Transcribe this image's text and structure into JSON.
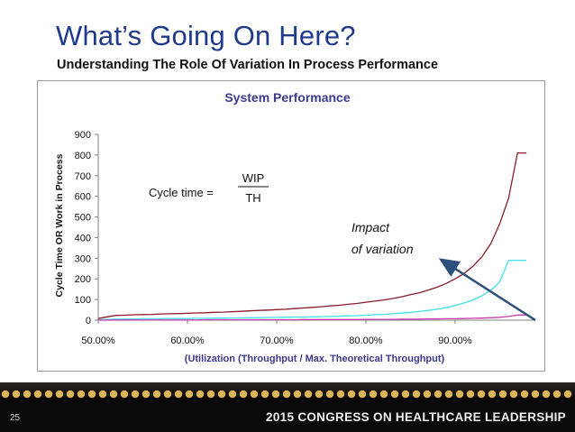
{
  "slide": {
    "title": "What’s Going On Here?",
    "subtitle": "Understanding The Role Of Variation In Process Performance",
    "page_number": "25",
    "footer_text": "2015 CONGRESS ON HEALTHCARE LEADERSHIP"
  },
  "colors": {
    "title": "#1f3a8a",
    "chart_title": "#3b3a8f",
    "series_red": "#8b1a2a",
    "series_cyan": "#3fe0e6",
    "series_magenta": "#c83aa8",
    "arrow": "#2d4f7a"
  },
  "annotations": {
    "formula_label": "Cycle time =",
    "formula_numerator": "WIP",
    "formula_denominator": "TH",
    "impact_line1": "Impact",
    "impact_line2": "of variation"
  },
  "chart_data": {
    "type": "line",
    "title": "System Performance",
    "xlabel": "(Utilization (Throughput / Max. Theoretical Throughput)",
    "ylabel": "Cycle Time OR Work in Process",
    "xlim": [
      0.5,
      0.99
    ],
    "ylim": [
      0,
      900
    ],
    "xticks": [
      0.5,
      0.6,
      0.7,
      0.8,
      0.9
    ],
    "xtick_labels": [
      "50.00%",
      "60.00%",
      "70.00%",
      "80.00%",
      "90.00%"
    ],
    "yticks": [
      0,
      100,
      200,
      300,
      400,
      500,
      600,
      700,
      800,
      900
    ],
    "ytick_labels": [
      "0",
      "100",
      "200",
      "300",
      "400",
      "500",
      "600",
      "700",
      "800",
      "900"
    ],
    "grid": false,
    "legend": "none",
    "x": [
      0.5,
      0.51,
      0.52,
      0.53,
      0.54,
      0.55,
      0.56,
      0.57,
      0.58,
      0.59,
      0.6,
      0.61,
      0.62,
      0.63,
      0.64,
      0.65,
      0.66,
      0.67,
      0.68,
      0.69,
      0.7,
      0.71,
      0.72,
      0.73,
      0.74,
      0.75,
      0.76,
      0.77,
      0.78,
      0.79,
      0.8,
      0.81,
      0.82,
      0.83,
      0.84,
      0.85,
      0.86,
      0.87,
      0.88,
      0.89,
      0.9,
      0.91,
      0.92,
      0.93,
      0.94,
      0.95,
      0.96,
      0.97,
      0.98
    ],
    "series": [
      {
        "color_key": "series_red",
        "values": [
          8,
          16,
          23,
          24,
          26,
          27,
          28,
          30,
          31,
          32,
          33,
          35,
          36,
          38,
          39,
          41,
          43,
          45,
          47,
          49,
          51,
          53,
          56,
          59,
          62,
          65,
          69,
          72,
          77,
          81,
          87,
          92,
          98,
          105,
          113,
          123,
          133,
          146,
          160,
          178,
          200,
          226,
          261,
          306,
          370,
          466,
          590,
          810,
          810
        ]
      },
      {
        "color_key": "series_cyan",
        "values": [
          2,
          4,
          5,
          6,
          6,
          7,
          7,
          7,
          8,
          8,
          8,
          9,
          9,
          10,
          10,
          11,
          11,
          12,
          12,
          13,
          13,
          14,
          15,
          15,
          16,
          17,
          18,
          19,
          21,
          22,
          24,
          26,
          28,
          31,
          34,
          38,
          42,
          47,
          53,
          61,
          71,
          83,
          98,
          118,
          144,
          185,
          290,
          290,
          290
        ]
      },
      {
        "color_key": "series_magenta",
        "values": [
          0,
          0,
          1,
          1,
          1,
          1,
          1,
          1,
          1,
          1,
          1,
          1,
          2,
          2,
          2,
          2,
          2,
          2,
          2,
          2,
          2,
          2,
          2,
          3,
          3,
          3,
          3,
          3,
          3,
          3,
          4,
          4,
          4,
          4,
          5,
          5,
          5,
          6,
          6,
          7,
          7,
          8,
          9,
          10,
          12,
          14,
          18,
          25,
          25
        ]
      }
    ]
  }
}
